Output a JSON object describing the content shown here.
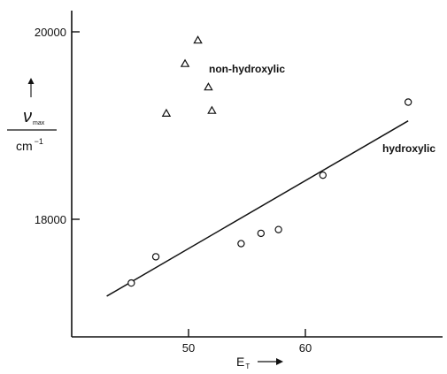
{
  "chart_data": {
    "type": "scatter",
    "xlabel": "E",
    "xlabel_sub": "T",
    "ylabel": "ν",
    "ylabel_sub": "max",
    "ylabel_unit": "cm",
    "ylabel_unit_exp": "−1",
    "x_ticks": [
      50,
      60
    ],
    "y_ticks": [
      18000,
      20000
    ],
    "y_tick_labels": [
      "18000",
      "20000"
    ],
    "xlim": [
      40,
      70
    ],
    "ylim": [
      16750,
      20250
    ],
    "grid": false,
    "series": [
      {
        "name": "non-hydroxylic",
        "marker": "triangle",
        "points": [
          {
            "x": 48.1,
            "y": 19130
          },
          {
            "x": 49.7,
            "y": 19660
          },
          {
            "x": 50.8,
            "y": 19910
          },
          {
            "x": 51.7,
            "y": 19410
          },
          {
            "x": 52.0,
            "y": 19160
          }
        ]
      },
      {
        "name": "hydroxylic",
        "marker": "circle",
        "points": [
          {
            "x": 45.1,
            "y": 17320
          },
          {
            "x": 47.2,
            "y": 17600
          },
          {
            "x": 54.5,
            "y": 17740
          },
          {
            "x": 56.2,
            "y": 17850
          },
          {
            "x": 57.7,
            "y": 17890
          },
          {
            "x": 61.5,
            "y": 18470
          },
          {
            "x": 68.8,
            "y": 19250
          }
        ]
      }
    ],
    "fit_line": {
      "series": "hydroxylic",
      "x": [
        43.0,
        68.8
      ],
      "y": [
        17180,
        19050
      ]
    },
    "annotations": [
      "non-hydroxylic",
      "hydroxylic"
    ],
    "colors": {
      "ink": "#111111",
      "background": "#ffffff"
    }
  }
}
